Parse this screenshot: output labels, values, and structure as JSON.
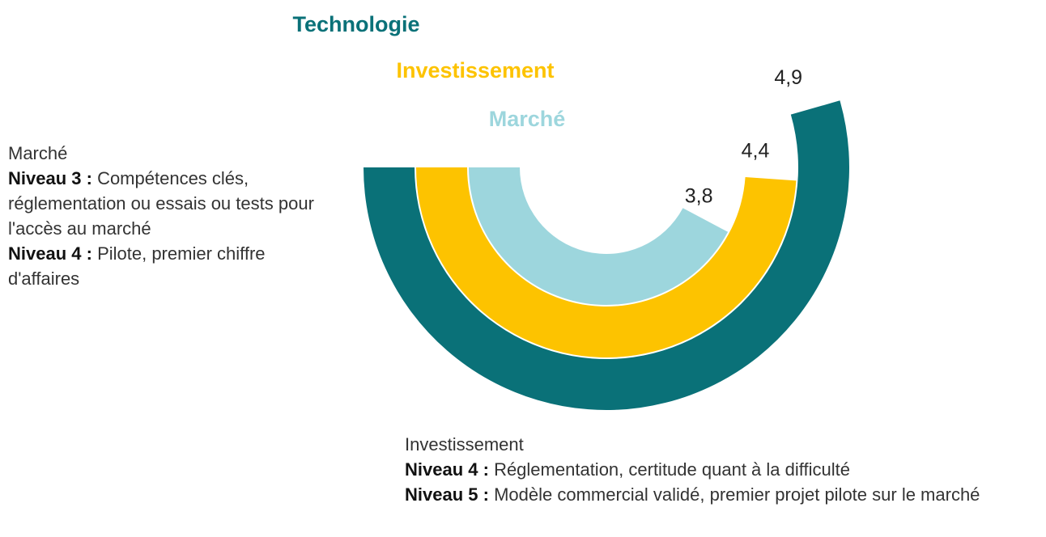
{
  "chart_data": {
    "type": "radial_bar",
    "categories": [
      "Technologie",
      "Investissement",
      "Marché"
    ],
    "values": [
      4.9,
      4.4,
      3.8
    ],
    "value_labels": [
      "4,9",
      "4,4",
      "3,8"
    ],
    "colors": [
      "#0a7178",
      "#fdc300",
      "#9dd6dd"
    ],
    "rlim": [
      0,
      9
    ]
  },
  "annotations": [
    {
      "title": "Marché",
      "items": [
        {
          "label": "Niveau 3 :",
          "text": "Compétences clés, réglementation ou essais ou tests pour l'accès au marché"
        },
        {
          "label": "Niveau 4 :",
          "text": "Pilote, premier chiffre d'affaires"
        }
      ]
    },
    {
      "title": "Investissement",
      "items": [
        {
          "label": "Niveau 4 :",
          "text": "Réglementation, certitude quant à la difficulté"
        },
        {
          "label": "Niveau 5 :",
          "text": "Modèle commercial validé, premier projet pilote sur le marché"
        }
      ]
    }
  ]
}
